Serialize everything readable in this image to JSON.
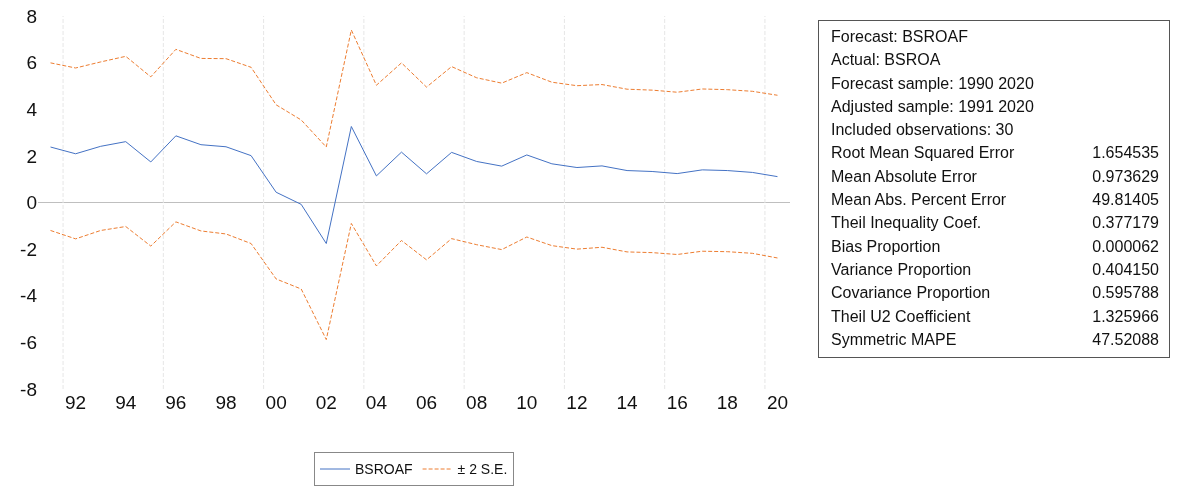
{
  "chart_data": [
    {
      "type": "line",
      "x": [
        1991,
        1992,
        1993,
        1994,
        1995,
        1996,
        1997,
        1998,
        1999,
        2000,
        2001,
        2002,
        2003,
        2004,
        2005,
        2006,
        2007,
        2008,
        2009,
        2010,
        2011,
        2012,
        2013,
        2014,
        2015,
        2016,
        2017,
        2018,
        2019,
        2020
      ],
      "series": [
        {
          "name": "BSROAF",
          "color": "#4472c4",
          "line_style": "solid",
          "values": [
            2.38,
            2.09,
            2.41,
            2.61,
            1.74,
            2.86,
            2.48,
            2.39,
            2.01,
            0.44,
            -0.08,
            -1.76,
            3.26,
            1.14,
            2.16,
            1.23,
            2.15,
            1.76,
            1.56,
            2.04,
            1.66,
            1.5,
            1.57,
            1.37,
            1.33,
            1.24,
            1.4,
            1.37,
            1.29,
            1.11
          ]
        },
        {
          "name": "± 2 S.E.",
          "color": "#ed7d31",
          "line_style": "dashed",
          "values": [
            5.99,
            5.77,
            6.03,
            6.27,
            5.39,
            6.57,
            6.18,
            6.17,
            5.8,
            4.19,
            3.54,
            2.38,
            7.4,
            5.03,
            5.99,
            4.95,
            5.83,
            5.35,
            5.12,
            5.57,
            5.16,
            5.01,
            5.06,
            4.86,
            4.82,
            4.73,
            4.87,
            4.84,
            4.77,
            4.6
          ]
        },
        {
          "color": "#ed7d31",
          "line_style": "dashed",
          "values": [
            -1.2,
            -1.56,
            -1.2,
            -1.03,
            -1.87,
            -0.83,
            -1.22,
            -1.35,
            -1.76,
            -3.28,
            -3.71,
            -5.88,
            -0.9,
            -2.72,
            -1.63,
            -2.46,
            -1.55,
            -1.81,
            -2.02,
            -1.48,
            -1.85,
            -2.0,
            -1.92,
            -2.12,
            -2.15,
            -2.23,
            -2.09,
            -2.11,
            -2.18,
            -2.38
          ]
        }
      ],
      "xlim": [
        1990.5,
        2020.5
      ],
      "xticks": [
        {
          "value": 1992,
          "label": "92"
        },
        {
          "value": 1994,
          "label": "94"
        },
        {
          "value": 1996,
          "label": "96"
        },
        {
          "value": 1998,
          "label": "98"
        },
        {
          "value": 2000,
          "label": "00"
        },
        {
          "value": 2002,
          "label": "02"
        },
        {
          "value": 2004,
          "label": "04"
        },
        {
          "value": 2006,
          "label": "06"
        },
        {
          "value": 2008,
          "label": "08"
        },
        {
          "value": 2010,
          "label": "10"
        },
        {
          "value": 2012,
          "label": "12"
        },
        {
          "value": 2014,
          "label": "14"
        },
        {
          "value": 2016,
          "label": "16"
        },
        {
          "value": 2018,
          "label": "18"
        },
        {
          "value": 2020,
          "label": "20"
        }
      ],
      "ylim": [
        -8,
        8
      ],
      "yticks": [
        -8,
        -6,
        -4,
        -2,
        0,
        2,
        4,
        6,
        8
      ],
      "ref_lines": [
        {
          "axis": "y",
          "value": 0,
          "color": "#bfbfbf",
          "line_style": "solid"
        },
        {
          "axis": "x",
          "value": 1991.5,
          "color": "#e6e6e6",
          "line_style": "dashed"
        },
        {
          "axis": "x",
          "value": 1995.5,
          "color": "#e6e6e6",
          "line_style": "dashed"
        },
        {
          "axis": "x",
          "value": 1999.5,
          "color": "#e6e6e6",
          "line_style": "dashed"
        },
        {
          "axis": "x",
          "value": 2003.5,
          "color": "#e6e6e6",
          "line_style": "dashed"
        },
        {
          "axis": "x",
          "value": 2007.5,
          "color": "#e6e6e6",
          "line_style": "dashed"
        },
        {
          "axis": "x",
          "value": 2011.5,
          "color": "#e6e6e6",
          "line_style": "dashed"
        },
        {
          "axis": "x",
          "value": 2015.5,
          "color": "#e6e6e6",
          "line_style": "dashed"
        },
        {
          "axis": "x",
          "value": 2019.5,
          "color": "#e6e6e6",
          "line_style": "dashed"
        }
      ],
      "grid": false,
      "legend": "bottom"
    },
    {
      "type": "other",
      "annotations": [
        "Forecast: BSROAF",
        "Actual: BSROA",
        "Forecast sample: 1990 2020",
        "Adjusted sample: 1991 2020",
        "Included observations: 30"
      ],
      "categories": [
        "Root Mean Squared Error",
        "Mean Absolute Error",
        "Mean Abs. Percent Error",
        "Theil Inequality Coef.",
        "Bias Proportion",
        "Variance Proportion",
        "Covariance Proportion",
        "Theil U2 Coefficient",
        "Symmetric MAPE"
      ],
      "value_labels": [
        "1.654535",
        "0.973629",
        "49.81405",
        "0.377179",
        "0.000062",
        "0.404150",
        "0.595788",
        "1.325966",
        "47.52088"
      ]
    }
  ]
}
